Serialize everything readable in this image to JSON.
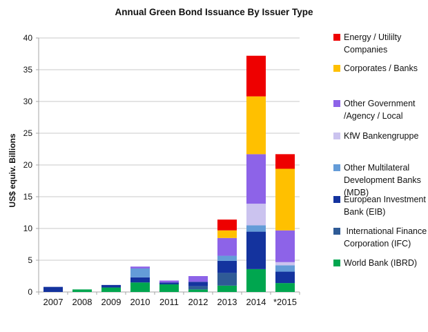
{
  "chart_data": {
    "type": "bar",
    "stacked": true,
    "title": "Annual Green Bond Issuance By Issuer Type",
    "xlabel": "",
    "ylabel": "US$ equiv. Billions",
    "ylim": [
      0,
      40
    ],
    "yticks": [
      0,
      5,
      10,
      15,
      20,
      25,
      30,
      35,
      40
    ],
    "grid": true,
    "legend_position": "right",
    "categories": [
      "2007",
      "2008",
      "2009",
      "2010",
      "2011",
      "2012",
      "2013",
      "2014",
      "*2015"
    ],
    "stack_order_note": "series listed bottom-to-top of the stack; legend shows reverse order",
    "series": [
      {
        "name": "World Bank (IBRD)",
        "color": "#00A64F",
        "legend_lines": [
          "World Bank (IBRD)"
        ],
        "values": [
          0,
          0.4,
          0.7,
          1.5,
          1.2,
          0.4,
          1.0,
          3.6,
          1.4
        ]
      },
      {
        "name": "International Finance Corporation (IFC)",
        "color": "#2F5B96",
        "legend_lines": [
          " International Finance",
          "Corporation (IFC)"
        ],
        "values": [
          0,
          0,
          0,
          0,
          0,
          0.5,
          2.0,
          0,
          0
        ]
      },
      {
        "name": "European Investment Bank (EIB)",
        "color": "#14339E",
        "legend_lines": [
          "European Investment",
          "Bank (EIB)"
        ],
        "values": [
          0.8,
          0,
          0.4,
          0.8,
          0.3,
          0.7,
          1.9,
          5.9,
          1.8
        ]
      },
      {
        "name": "Other Multilateral Development Banks (MDB)",
        "color": "#649CD8",
        "legend_lines": [
          "Other Multilateral",
          "Development Banks",
          "(MDB)"
        ],
        "values": [
          0,
          0,
          0,
          1.4,
          0,
          0,
          0.8,
          1.0,
          1.0
        ]
      },
      {
        "name": "KfW Bankengruppe",
        "color": "#CBC3EF",
        "legend_lines": [
          "KfW Bankengruppe"
        ],
        "values": [
          0,
          0,
          0,
          0,
          0,
          0,
          0,
          3.4,
          0.5
        ]
      },
      {
        "name": "Other Government /Agency / Local",
        "color": "#8D63E8",
        "legend_lines": [
          "Other Government",
          "/Agency / Local"
        ],
        "values": [
          0,
          0,
          0,
          0.3,
          0.3,
          0.9,
          2.8,
          7.8,
          5.0
        ]
      },
      {
        "name": "Corporates / Banks",
        "color": "#FFC000",
        "legend_lines": [
          "Corporates / Banks"
        ],
        "values": [
          0,
          0,
          0,
          0,
          0,
          0,
          1.2,
          9.1,
          9.7
        ]
      },
      {
        "name": "Energy / Utililty Companies",
        "color": "#EE0000",
        "legend_lines": [
          "Energy / Utililty",
          "Companies"
        ],
        "values": [
          0,
          0,
          0,
          0,
          0,
          0,
          1.7,
          6.4,
          2.3
        ]
      }
    ],
    "totals": [
      0.8,
      0.4,
      1.1,
      4.0,
      1.8,
      2.5,
      11.4,
      37.2,
      21.7
    ]
  },
  "colors": {
    "gridline": "#C9C9C9",
    "axis": "#A6A6A6",
    "text": "#111111",
    "background": "#FFFFFF"
  }
}
